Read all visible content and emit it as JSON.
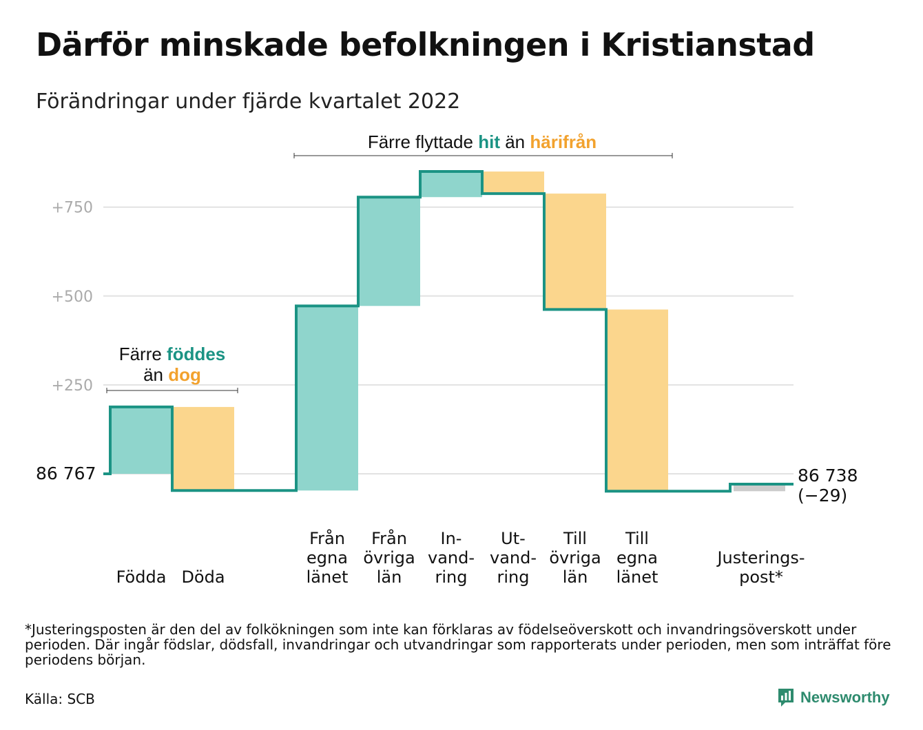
{
  "title": "Därför minskade befolkningen i Kristianstad",
  "subtitle": "Förändringar under fjärde kvartalet 2022",
  "colors": {
    "inflow": "#8fd5cc",
    "outflow": "#fbd68d",
    "adjustment": "#cccccc",
    "line": "#1b9384",
    "accent_teal": "#1b9384",
    "accent_orange": "#f2a22e",
    "grid": "#e2e2e2",
    "tick": "#aaaaaa"
  },
  "annotations": {
    "births": {
      "part1": "Färre ",
      "teal": "föddes",
      "part2": "än ",
      "orange": "dog"
    },
    "migration": {
      "part1": "Färre flyttade ",
      "teal": "hit",
      "part2": " än ",
      "orange": "härifrån"
    }
  },
  "start_label": "86 767",
  "end_label": {
    "value": "86 738",
    "change": "(−29)"
  },
  "footnote": "*Justeringsposten är den del av folkökningen som inte kan förklaras av födelseöverskott och invandringsöverskott under perioden. Där ingår födslar, dödsfall, invandringar och utvandringar som rapporterats under perioden, men som inträffat före periodens början.",
  "source": "Källa: SCB",
  "logo": {
    "text": "Newsworthy",
    "icon": "newsworthy-logo-icon"
  },
  "chart_data": {
    "type": "waterfall",
    "title": "Därför minskade befolkningen i Kristianstad",
    "subtitle": "Förändringar under fjärde kvartalet 2022",
    "start_value": 86767,
    "end_value": 86738,
    "net_change": -29,
    "y_relative_ticks": [
      250,
      500,
      750
    ],
    "y_tick_labels": [
      "+250",
      "+500",
      "+750"
    ],
    "y_range_relative": [
      -100,
      900
    ],
    "grid": true,
    "steps": [
      {
        "label_lines": [
          "Födda"
        ],
        "change": 188,
        "kind": "inflow"
      },
      {
        "label_lines": [
          "Döda"
        ],
        "change": -235,
        "kind": "outflow"
      },
      {
        "label_lines": [
          "Från",
          "egna",
          "länet"
        ],
        "change": 519,
        "kind": "inflow",
        "gap_before": true
      },
      {
        "label_lines": [
          "Från",
          "övriga",
          "län"
        ],
        "change": 306,
        "kind": "inflow"
      },
      {
        "label_lines": [
          "In-",
          "vand-",
          "ring"
        ],
        "change": 72,
        "kind": "inflow"
      },
      {
        "label_lines": [
          "Ut-",
          "vand-",
          "ring"
        ],
        "change": -62,
        "kind": "outflow"
      },
      {
        "label_lines": [
          "Till",
          "övriga",
          "län"
        ],
        "change": -326,
        "kind": "outflow"
      },
      {
        "label_lines": [
          "Till",
          "egna",
          "länet"
        ],
        "change": -511,
        "kind": "outflow"
      },
      {
        "label_lines": [
          "Justerings-",
          "post*"
        ],
        "change": 20,
        "kind": "adjustment",
        "gap_before": true
      }
    ]
  }
}
